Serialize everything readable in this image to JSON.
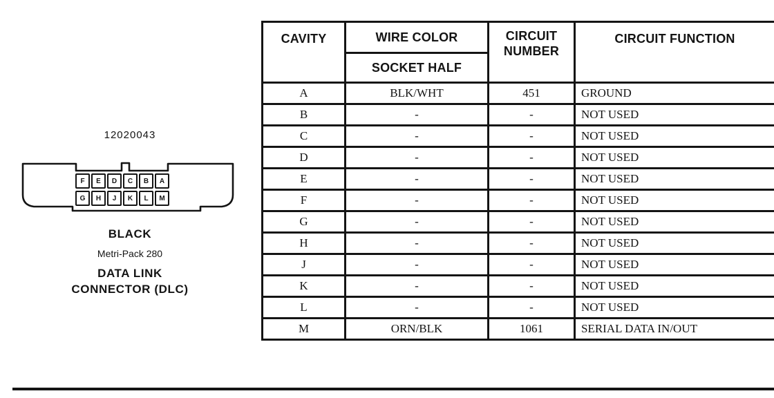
{
  "figure": {
    "part_number": "12020043",
    "pins_top": [
      "F",
      "E",
      "D",
      "C",
      "B",
      "A"
    ],
    "pins_bottom": [
      "G",
      "H",
      "J",
      "K",
      "L",
      "M"
    ],
    "labels": {
      "color": "BLACK",
      "series": "Metri-Pack 280",
      "name_line1": "DATA LINK",
      "name_line2": "CONNECTOR (DLC)"
    }
  },
  "table": {
    "headers": {
      "cavity": "CAVITY",
      "wire_color": "WIRE COLOR",
      "socket_half": "SOCKET HALF",
      "circuit_number_line1": "CIRCUIT",
      "circuit_number_line2": "NUMBER",
      "circuit_function": "CIRCUIT FUNCTION"
    },
    "rows": [
      {
        "cavity": "A",
        "wire_color": "BLK/WHT",
        "circuit_number": "451",
        "circuit_function": "GROUND"
      },
      {
        "cavity": "B",
        "wire_color": "-",
        "circuit_number": "-",
        "circuit_function": "NOT USED"
      },
      {
        "cavity": "C",
        "wire_color": "-",
        "circuit_number": "-",
        "circuit_function": "NOT USED"
      },
      {
        "cavity": "D",
        "wire_color": "-",
        "circuit_number": "-",
        "circuit_function": "NOT USED"
      },
      {
        "cavity": "E",
        "wire_color": "-",
        "circuit_number": "-",
        "circuit_function": "NOT USED"
      },
      {
        "cavity": "F",
        "wire_color": "-",
        "circuit_number": "-",
        "circuit_function": "NOT USED"
      },
      {
        "cavity": "G",
        "wire_color": "-",
        "circuit_number": "-",
        "circuit_function": "NOT USED"
      },
      {
        "cavity": "H",
        "wire_color": "-",
        "circuit_number": "-",
        "circuit_function": "NOT USED"
      },
      {
        "cavity": "J",
        "wire_color": "-",
        "circuit_number": "-",
        "circuit_function": "NOT USED"
      },
      {
        "cavity": "K",
        "wire_color": "-",
        "circuit_number": "-",
        "circuit_function": "NOT USED"
      },
      {
        "cavity": "L",
        "wire_color": "-",
        "circuit_number": "-",
        "circuit_function": "NOT USED"
      },
      {
        "cavity": "M",
        "wire_color": "ORN/BLK",
        "circuit_number": "1061",
        "circuit_function": "SERIAL DATA IN/OUT"
      }
    ]
  },
  "colors": {
    "ink": "#141414",
    "paper": "#ffffff"
  }
}
